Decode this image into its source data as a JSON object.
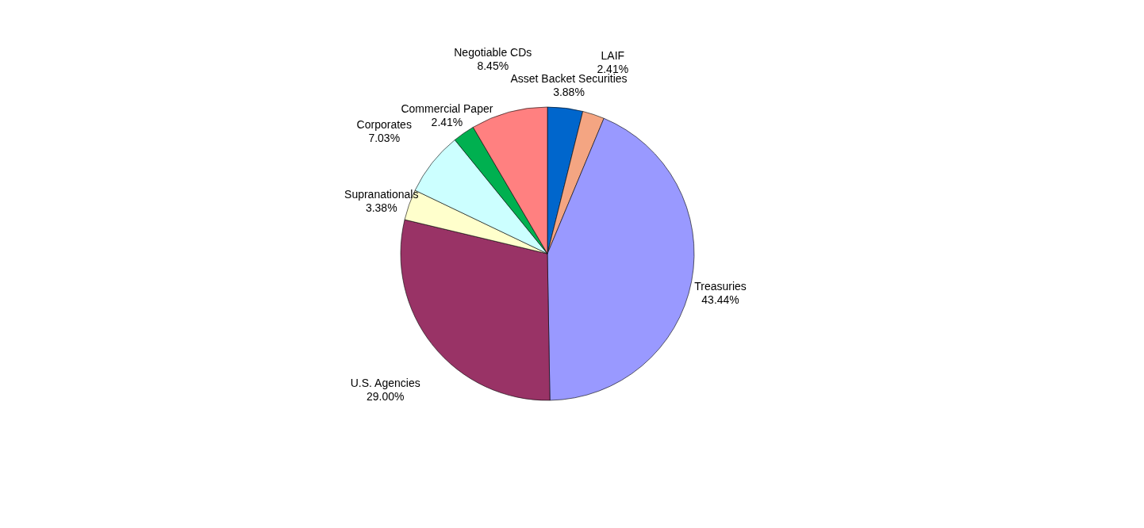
{
  "chart_data": {
    "type": "pie",
    "categories": [
      "Asset Backet Securities",
      "LAIF",
      "Treasuries",
      "U.S. Agencies",
      "Supranationals",
      "Corporates",
      "Commercial Paper",
      "Negotiable CDs"
    ],
    "values": [
      3.88,
      2.41,
      43.44,
      29.0,
      3.38,
      7.03,
      2.41,
      8.45
    ],
    "value_labels": [
      "3.88%",
      "2.41%",
      "43.44%",
      "29.00%",
      "3.38%",
      "7.03%",
      "2.41%",
      "8.45%"
    ],
    "colors": [
      "#0066cc",
      "#f4a582",
      "#9999ff",
      "#993366",
      "#ffffcc",
      "#ccffff",
      "#00b050",
      "#ff8080"
    ],
    "legend": false
  }
}
